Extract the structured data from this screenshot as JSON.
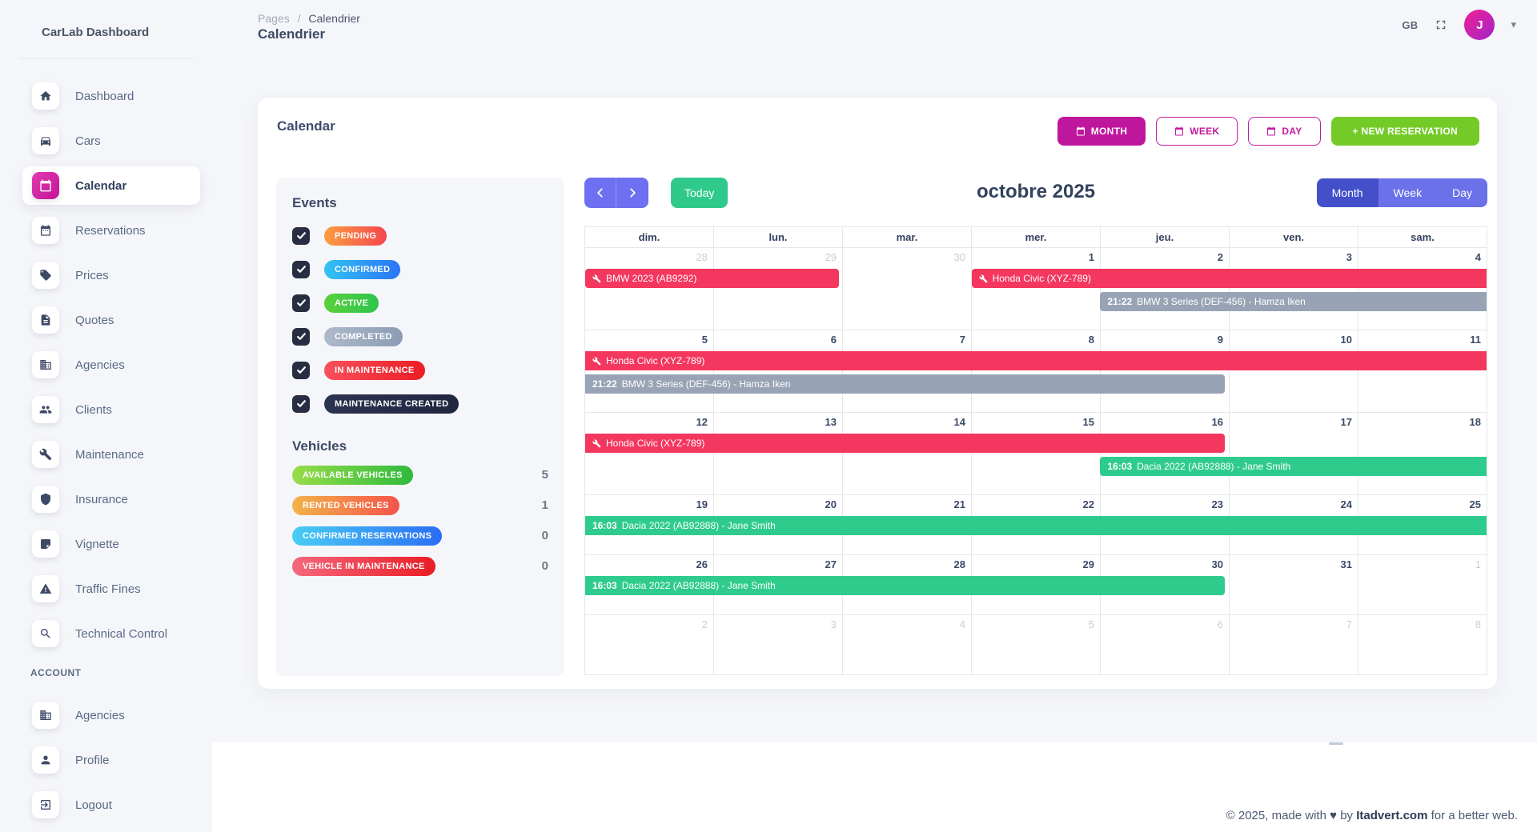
{
  "app": {
    "title": "CarLab Dashboard"
  },
  "sidebar": {
    "items": [
      {
        "icon": "home-icon",
        "label": "Dashboard",
        "active": false
      },
      {
        "icon": "car-icon",
        "label": "Cars",
        "active": false
      },
      {
        "icon": "calendar-icon",
        "label": "Calendar",
        "active": true
      },
      {
        "icon": "reservations-icon",
        "label": "Reservations",
        "active": false
      },
      {
        "icon": "tag-icon",
        "label": "Prices",
        "active": false
      },
      {
        "icon": "file-icon",
        "label": "Quotes",
        "active": false
      },
      {
        "icon": "building-icon",
        "label": "Agencies",
        "active": false
      },
      {
        "icon": "people-icon",
        "label": "Clients",
        "active": false
      },
      {
        "icon": "wrench-icon",
        "label": "Maintenance",
        "active": false
      },
      {
        "icon": "shield-icon",
        "label": "Insurance",
        "active": false
      },
      {
        "icon": "sticker-icon",
        "label": "Vignette",
        "active": false
      },
      {
        "icon": "warning-icon",
        "label": "Traffic Fines",
        "active": false
      },
      {
        "icon": "search-icon",
        "label": "Technical Control",
        "active": false
      }
    ],
    "account_label": "ACCOUNT",
    "account_items": [
      {
        "icon": "building-icon",
        "label": "Agencies",
        "active": false
      },
      {
        "icon": "person-icon",
        "label": "Profile",
        "active": false
      },
      {
        "icon": "logout-icon",
        "label": "Logout",
        "active": false
      }
    ]
  },
  "header": {
    "breadcrumb_parent": "Pages",
    "breadcrumb_separator": "/",
    "breadcrumb_current": "Calendrier",
    "page_title": "Calendrier",
    "language": "GB",
    "avatar_initial": "J"
  },
  "card": {
    "title": "Calendar",
    "view_buttons": [
      {
        "label": "MONTH",
        "icon": "calendar-icon",
        "active": true
      },
      {
        "label": "WEEK",
        "icon": "calendar-icon",
        "active": false
      },
      {
        "label": "DAY",
        "icon": "calendar-icon",
        "active": false
      }
    ],
    "new_reservation_label": "+ NEW RESERVATION"
  },
  "events_panel": {
    "title": "Events",
    "filters": [
      {
        "label": "PENDING",
        "checked": true,
        "gradient": [
          "#fb9e3f",
          "#f4474e"
        ]
      },
      {
        "label": "CONFIRMED",
        "checked": true,
        "gradient": [
          "#31c4f3",
          "#2b74f4"
        ]
      },
      {
        "label": "ACTIVE",
        "checked": true,
        "gradient": [
          "#5bd03a",
          "#2ec44e"
        ]
      },
      {
        "label": "COMPLETED",
        "checked": true,
        "gradient": [
          "#aeb9cb",
          "#8c9cb2"
        ]
      },
      {
        "label": "IN MAINTENANCE",
        "checked": true,
        "gradient": [
          "#f9505c",
          "#ec1c24"
        ]
      },
      {
        "label": "MAINTENANCE CREATED",
        "checked": true,
        "gradient": [
          "#2b3350",
          "#1f2740"
        ]
      }
    ]
  },
  "vehicles_panel": {
    "title": "Vehicles",
    "stats": [
      {
        "label": "AVAILABLE VEHICLES",
        "count": "5",
        "gradient": [
          "#97dd4a",
          "#2fba3e"
        ]
      },
      {
        "label": "RENTED VEHICLES",
        "count": "1",
        "gradient": [
          "#f2b44a",
          "#f4544a"
        ]
      },
      {
        "label": "CONFIRMED RESERVATIONS",
        "count": "0",
        "gradient": [
          "#49cdf4",
          "#2b6ef4"
        ]
      },
      {
        "label": "VEHICLE IN MAINTENANCE",
        "count": "0",
        "gradient": [
          "#f4697e",
          "#ea1c24"
        ]
      }
    ]
  },
  "calendar": {
    "title": "octobre 2025",
    "today_label": "Today",
    "view_toggle": {
      "options": [
        "Month",
        "Week",
        "Day"
      ],
      "active": "Month"
    },
    "day_headers": [
      "dim.",
      "lun.",
      "mar.",
      "mer.",
      "jeu.",
      "ven.",
      "sam."
    ],
    "event_colors": {
      "maintenance": "#f4375f",
      "completed": "#98a4b5",
      "active": "#2fcb8d"
    },
    "weeks": [
      {
        "days": [
          {
            "n": "28",
            "muted": true
          },
          {
            "n": "29",
            "muted": true
          },
          {
            "n": "30",
            "muted": true
          },
          {
            "n": "1",
            "muted": false
          },
          {
            "n": "2",
            "muted": false
          },
          {
            "n": "3",
            "muted": false
          },
          {
            "n": "4",
            "muted": false
          }
        ],
        "events": [
          {
            "lane": 0,
            "start": 0,
            "span": 2,
            "color": "#f4375f",
            "icon": "wrench-icon",
            "time": "",
            "text": "BMW 2023 (AB9292)",
            "round_left": true,
            "round_right": true
          },
          {
            "lane": 0,
            "start": 3,
            "span": 4,
            "color": "#f4375f",
            "icon": "wrench-icon",
            "time": "",
            "text": "Honda Civic (XYZ-789)",
            "round_left": true,
            "round_right": false
          },
          {
            "lane": 1,
            "start": 4,
            "span": 3,
            "color": "#98a4b5",
            "icon": "",
            "time": "21:22",
            "text": "BMW 3 Series (DEF-456) - Hamza Iken",
            "round_left": true,
            "round_right": false
          }
        ]
      },
      {
        "days": [
          {
            "n": "5",
            "muted": false
          },
          {
            "n": "6",
            "muted": false
          },
          {
            "n": "7",
            "muted": false
          },
          {
            "n": "8",
            "muted": false
          },
          {
            "n": "9",
            "muted": false
          },
          {
            "n": "10",
            "muted": false
          },
          {
            "n": "11",
            "muted": false
          }
        ],
        "events": [
          {
            "lane": 0,
            "start": 0,
            "span": 7,
            "color": "#f4375f",
            "icon": "wrench-icon",
            "time": "",
            "text": "Honda Civic (XYZ-789)",
            "round_left": false,
            "round_right": false
          },
          {
            "lane": 1,
            "start": 0,
            "span": 5,
            "color": "#98a4b5",
            "icon": "",
            "time": "21:22",
            "text": "BMW 3 Series (DEF-456) - Hamza Iken",
            "round_left": false,
            "round_right": true
          }
        ]
      },
      {
        "days": [
          {
            "n": "12",
            "muted": false
          },
          {
            "n": "13",
            "muted": false
          },
          {
            "n": "14",
            "muted": false
          },
          {
            "n": "15",
            "muted": false
          },
          {
            "n": "16",
            "muted": false
          },
          {
            "n": "17",
            "muted": false
          },
          {
            "n": "18",
            "muted": false
          }
        ],
        "events": [
          {
            "lane": 0,
            "start": 0,
            "span": 5,
            "color": "#f4375f",
            "icon": "wrench-icon",
            "time": "",
            "text": "Honda Civic (XYZ-789)",
            "round_left": false,
            "round_right": true
          },
          {
            "lane": 1,
            "start": 4,
            "span": 3,
            "color": "#2fcb8d",
            "icon": "",
            "time": "16:03",
            "text": "Dacia 2022 (AB92888) - Jane Smith",
            "round_left": true,
            "round_right": false
          }
        ]
      },
      {
        "days": [
          {
            "n": "19",
            "muted": false
          },
          {
            "n": "20",
            "muted": false
          },
          {
            "n": "21",
            "muted": false
          },
          {
            "n": "22",
            "muted": false
          },
          {
            "n": "23",
            "muted": false
          },
          {
            "n": "24",
            "muted": false
          },
          {
            "n": "25",
            "muted": false
          }
        ],
        "events": [
          {
            "lane": 0,
            "start": 0,
            "span": 7,
            "color": "#2fcb8d",
            "icon": "",
            "time": "16:03",
            "text": "Dacia 2022 (AB92888) - Jane Smith",
            "round_left": false,
            "round_right": false
          }
        ]
      },
      {
        "days": [
          {
            "n": "26",
            "muted": false
          },
          {
            "n": "27",
            "muted": false
          },
          {
            "n": "28",
            "muted": false
          },
          {
            "n": "29",
            "muted": false
          },
          {
            "n": "30",
            "muted": false
          },
          {
            "n": "31",
            "muted": false
          },
          {
            "n": "1",
            "muted": true
          }
        ],
        "events": [
          {
            "lane": 0,
            "start": 0,
            "span": 5,
            "color": "#2fcb8d",
            "icon": "",
            "time": "16:03",
            "text": "Dacia 2022 (AB92888) - Jane Smith",
            "round_left": false,
            "round_right": true
          }
        ]
      },
      {
        "days": [
          {
            "n": "2",
            "muted": true
          },
          {
            "n": "3",
            "muted": true
          },
          {
            "n": "4",
            "muted": true
          },
          {
            "n": "5",
            "muted": true
          },
          {
            "n": "6",
            "muted": true
          },
          {
            "n": "7",
            "muted": true
          },
          {
            "n": "8",
            "muted": true
          }
        ],
        "events": []
      }
    ]
  },
  "footer": {
    "prefix": "© 2025, made with",
    "heart": "♥",
    "mid": "by",
    "brand": "Itadvert.com",
    "suffix": "for a better web."
  }
}
